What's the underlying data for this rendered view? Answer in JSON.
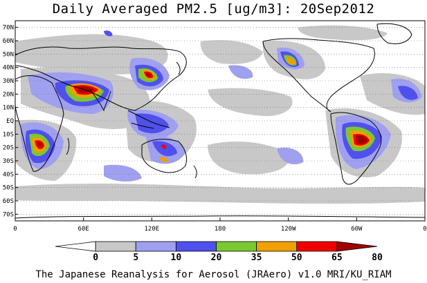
{
  "map": {
    "title": "Daily Averaged PM2.5 [ug/m3]: 20Sep2012",
    "footer": "The Japanese Reanalysis for Aerosol (JRAero) v1.0 MRI/KU_RIAM",
    "lat_labels": [
      "70N",
      "60N",
      "50N",
      "40N",
      "30N",
      "20N",
      "10N",
      "EQ",
      "10S",
      "20S",
      "30S",
      "40S",
      "50S",
      "60S",
      "70S"
    ],
    "lon_labels": [
      "0",
      "60E",
      "120E",
      "180",
      "120W",
      "60W",
      "0"
    ],
    "colorbar": {
      "bins": [
        {
          "color": "#ffffff"
        },
        {
          "color": "#c8c8c8"
        },
        {
          "color": "#a0a0f0"
        },
        {
          "color": "#5050ee"
        },
        {
          "color": "#7ac832"
        },
        {
          "color": "#f0a000"
        },
        {
          "color": "#f00000"
        },
        {
          "color": "#a00000"
        }
      ],
      "tick_labels": [
        "0",
        "5",
        "10",
        "20",
        "35",
        "50",
        "65",
        "80"
      ]
    }
  }
}
